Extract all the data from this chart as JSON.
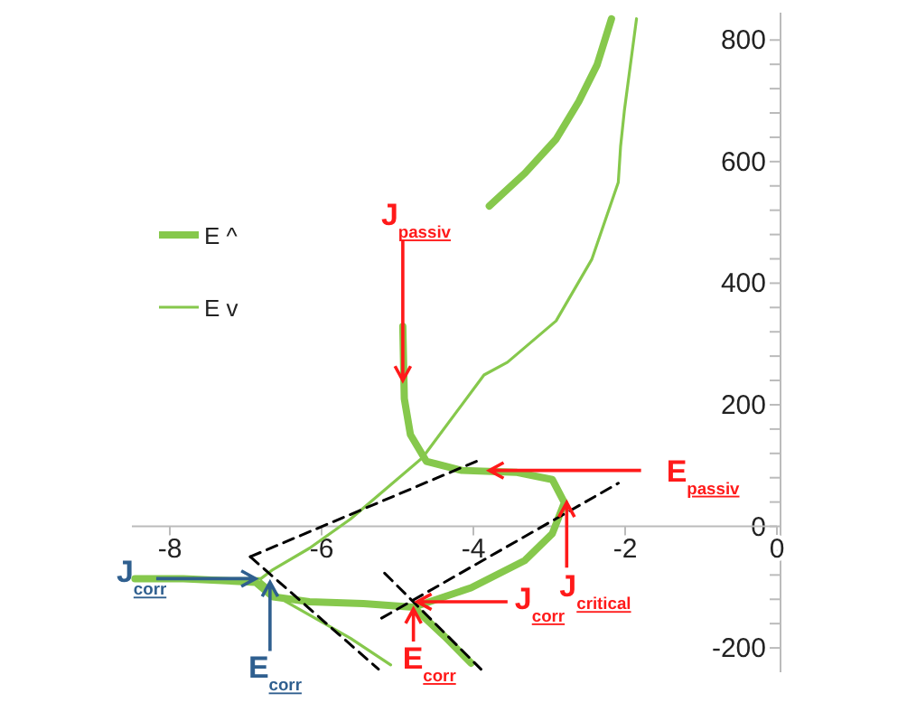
{
  "chart_data": {
    "type": "line",
    "xlim": [
      -8.5,
      0
    ],
    "xticks": [
      -8,
      -6,
      -4,
      -2,
      0
    ],
    "ylim": [
      -240,
      845
    ],
    "yticks": [
      {
        "value": -200,
        "label": "-200"
      },
      {
        "value": -160,
        "label": null
      },
      {
        "value": -120,
        "label": null
      },
      {
        "value": -80,
        "label": null
      },
      {
        "value": -40,
        "label": null
      },
      0,
      {
        "value": 40,
        "label": null
      },
      {
        "value": 80,
        "label": null
      },
      {
        "value": 120,
        "label": null
      },
      {
        "value": 160,
        "label": null
      },
      200,
      {
        "value": 240,
        "label": null
      },
      {
        "value": 280,
        "label": null
      },
      {
        "value": 320,
        "label": null
      },
      {
        "value": 360,
        "label": null
      },
      400,
      {
        "value": 440,
        "label": null
      },
      {
        "value": 480,
        "label": null
      },
      {
        "value": 520,
        "label": null
      },
      {
        "value": 560,
        "label": null
      },
      600,
      {
        "value": 640,
        "label": null
      },
      {
        "value": 680,
        "label": null
      },
      {
        "value": 720,
        "label": null
      },
      {
        "value": 760,
        "label": null
      },
      800
    ],
    "grid": false,
    "legend": "left",
    "marker": "none",
    "series": [
      {
        "name": "E ^",
        "color": "#86c84c",
        "x": [
          -4.03,
          -4.38,
          -4.79,
          -5.45,
          -6.16,
          -6.64,
          -6.87,
          -7.82,
          -8.46,
          null,
          -4.79,
          -4.03,
          -3.32,
          -2.96,
          -2.8,
          -2.96,
          -3.44,
          -4.15,
          -4.62,
          -4.83,
          -4.91,
          -4.93,
          null,
          -3.79,
          -3.32,
          -2.91,
          -2.61,
          -2.37,
          -2.18
        ],
        "values": [
          -225,
          -181,
          -133,
          -127,
          -124,
          -116,
          -92,
          -86,
          -86,
          null,
          -133,
          -101,
          -56,
          -12,
          39,
          77,
          89,
          92,
          107,
          151,
          210,
          329,
          null,
          527,
          581,
          637,
          699,
          759,
          835
        ]
      },
      {
        "name": "E v",
        "color": "#86c84c",
        "x": [
          -8.13,
          -6.8,
          -6.64,
          -6.16,
          -5.62,
          -4.67,
          -3.86,
          -3.55,
          -2.91,
          -2.44,
          -2.09,
          -2.06,
          -2.01,
          -1.85,
          null,
          -6.8,
          -6.47,
          -5.62,
          -5.09
        ],
        "values": [
          -86,
          -86,
          -71,
          -36,
          12,
          113,
          249,
          270,
          338,
          439,
          566,
          625,
          684,
          835,
          null,
          -90,
          -124,
          -184,
          -228
        ]
      },
      {
        "color": "#000000",
        "line_style": "dashed",
        "x": [
          -6.94,
          -3.96
        ],
        "values": [
          -50,
          107
        ]
      },
      {
        "color": "#000000",
        "line_style": "dashed",
        "x": [
          -6.94,
          -5.25
        ],
        "values": [
          -50,
          -235
        ]
      },
      {
        "color": "#000000",
        "line_style": "dashed",
        "x": [
          -5.21,
          -2.09
        ],
        "values": [
          -151,
          71
        ]
      },
      {
        "color": "#000000",
        "line_style": "dashed",
        "x": [
          -5.17,
          -3.9
        ],
        "values": [
          -77,
          -235
        ]
      }
    ],
    "annotations": [
      {
        "text": "J$_{passiv}$",
        "x": -4.93,
        "y": 240
      },
      {
        "text": "E$_{passiv}$",
        "x": -3.79,
        "y": 92
      },
      {
        "text": "J$_{critical}$",
        "x": -2.77,
        "y": 39
      },
      {
        "text": "J$_{corr}$",
        "x": -4.74,
        "y": -124
      },
      {
        "text": "E$_{corr}$",
        "x": -4.79,
        "y": -136
      },
      {
        "text": "J$_{corr}$",
        "x": -6.87,
        "y": -86
      },
      {
        "text": "E$_{corr}$",
        "x": -6.68,
        "y": -92
      }
    ]
  }
}
